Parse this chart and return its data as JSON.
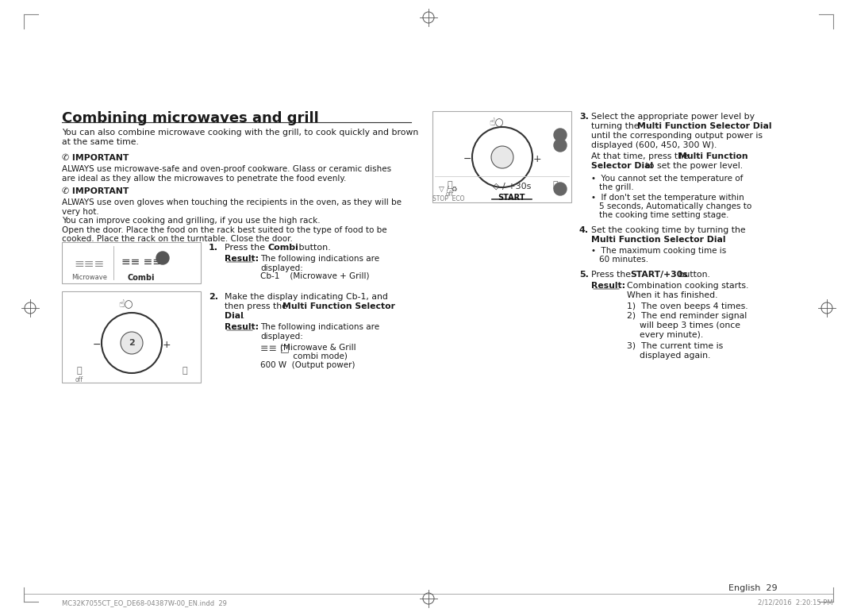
{
  "bg_color": "#ffffff",
  "title": "Combining microwaves and grill",
  "page_number": "English  29",
  "footer_left": "MC32K7055CT_EO_DE68-04387W-00_EN.indd  29",
  "footer_right": "2/12/2016  2:20:15 PM",
  "intro": "You can also combine microwave cooking with the grill, to cook quickly and brown\nat the same time.",
  "important1_label": "✆ IMPORTANT",
  "important1_text": "ALWAYS use microwave-safe and oven-proof cookware. Glass or ceramic dishes\nare ideal as they allow the microwaves to penetrate the food evenly.",
  "important2_label": "✆ IMPORTANT",
  "important2_text": "ALWAYS use oven gloves when touching the recipients in the oven, as they will be\nvery hot.\nYou can improve cooking and grilling, if you use the high rack.\nOpen the door. Place the food on the rack best suited to the type of food to be\ncooked. Place the rack on the turntable. Close the door.",
  "step1_num": "1.",
  "step1_text1": "Press the ",
  "step1_bold1": "Combi",
  "step1_text2": " button.",
  "step1_result_label": "Result:",
  "step1_result_text": "The following indications are\ndisplayed:",
  "step1_result_detail": "Cb-1    (Microwave + Grill)",
  "step2_num": "2.",
  "step2_text": "Make the display indicating Cb-1, and\nthen press the ",
  "step2_bold": "Multi Function Selector\nDial",
  "step2_text2": ".",
  "step2_result_label": "Result:",
  "step2_result_text": "The following indications are\ndisplayed:",
  "step2_result_detail1": "(Microwave & Grill\n    combi mode)",
  "step2_result_detail2": "600 W  (Output power)",
  "step3_num": "3.",
  "step3_text": "Select the appropriate power level by\nturning the ",
  "step3_bold1": "Multi Function Selector Dial",
  "step3_text2": "\nuntil the corresponding output power is\ndisplayed (600, 450, 300 W).\nAt that time, press the ",
  "step3_bold2": "Multi Function\nSelector Dial",
  "step3_text3": " to set the power level.",
  "step3_bullet1": "•  You cannot set the temperature of\n    the grill.",
  "step3_bullet2": "•  If don't set the temperature within\n    5 seconds, Automatically changes to\n    the cooking time setting stage.",
  "step4_num": "4.",
  "step4_text": "Set the cooking time by turning the\n",
  "step4_bold": "Multi Function Selector Dial",
  "step4_text2": ".",
  "step4_bullet": "•  The maximum cooking time is\n    60 minutes.",
  "step5_num": "5.",
  "step5_text1": "Press the ",
  "step5_bold": "START/+30s",
  "step5_text2": " button.",
  "step5_result_label": "Result:",
  "step5_result_text": "Combination cooking starts.\nWhen it has finished.",
  "step5_result_items": "1)  The oven beeps 4 times.\n2)  The end reminder signal\n      will beep 3 times (once\n      every minute).\n3)  The current time is\n      displayed again."
}
